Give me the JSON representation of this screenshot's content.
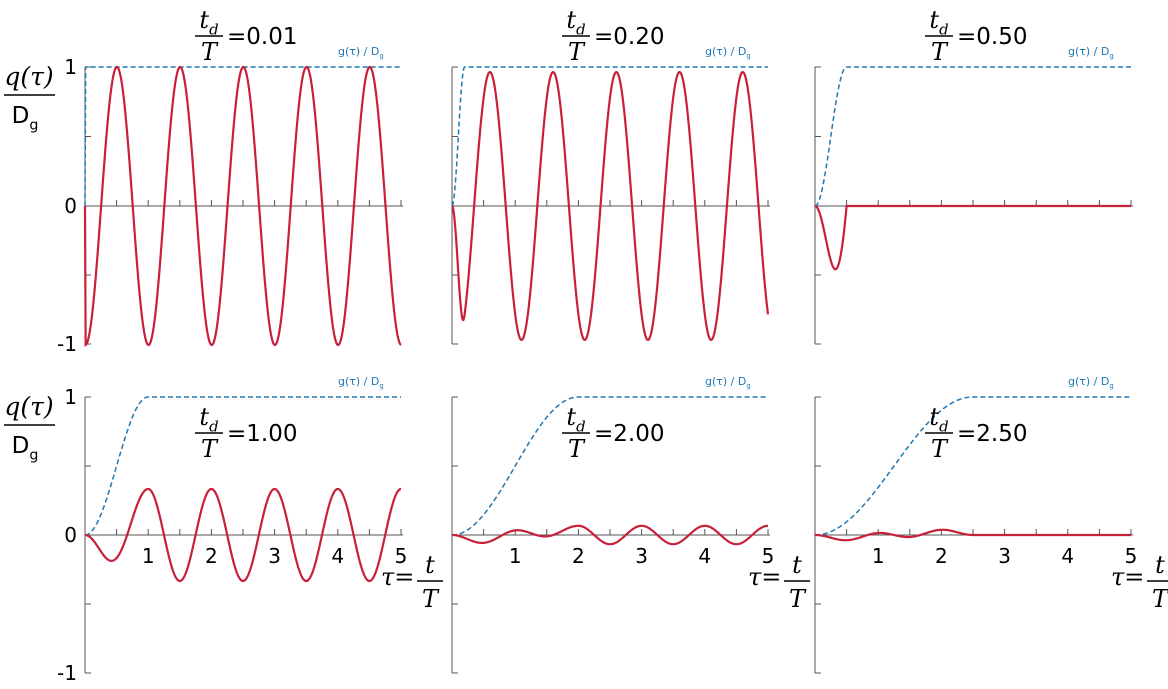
{
  "figure": {
    "ylabel_num": "q(τ)",
    "ylabel_den": "Dg",
    "xlabel_lhs": "τ=",
    "xlabel_num": "t",
    "xlabel_den": "T",
    "ratio_num": "td",
    "ratio_den": "T",
    "legend_label": "g(τ) / Dg",
    "colors": {
      "response": "#c8203a",
      "ground": "#1f77b4",
      "axis": "#555555"
    }
  },
  "chart_data": [
    {
      "type": "line",
      "td_over_T": "=0.01",
      "td": 0.01,
      "x_range": [
        0,
        5
      ],
      "ylim": [
        -1,
        1
      ],
      "yticks": [
        "1",
        "0",
        "-1"
      ],
      "xticks": [],
      "series": [
        {
          "name": "q(τ)/Dg",
          "style": "solid"
        },
        {
          "name": "g(τ) / Dg",
          "style": "dashed"
        }
      ]
    },
    {
      "type": "line",
      "td_over_T": "=0.20",
      "td": 0.2,
      "x_range": [
        0,
        5
      ],
      "ylim": [
        -1,
        1
      ],
      "yticks": [],
      "xticks": [],
      "series": [
        {
          "name": "q(τ)/Dg",
          "style": "solid"
        },
        {
          "name": "g(τ) / Dg",
          "style": "dashed"
        }
      ]
    },
    {
      "type": "line",
      "td_over_T": "=0.50",
      "td": 0.5,
      "x_range": [
        0,
        5
      ],
      "ylim": [
        -1,
        1
      ],
      "yticks": [],
      "xticks": [],
      "series": [
        {
          "name": "q(τ)/Dg",
          "style": "solid"
        },
        {
          "name": "g(τ) / Dg",
          "style": "dashed"
        }
      ]
    },
    {
      "type": "line",
      "td_over_T": "=1.00",
      "td": 1.0,
      "x_range": [
        0,
        5
      ],
      "ylim": [
        -1,
        1
      ],
      "yticks": [
        "1",
        "0",
        "-1"
      ],
      "xticks": [
        "1",
        "2",
        "3",
        "4",
        "5"
      ],
      "series": [
        {
          "name": "q(τ)/Dg",
          "style": "solid"
        },
        {
          "name": "g(τ) / Dg",
          "style": "dashed"
        }
      ]
    },
    {
      "type": "line",
      "td_over_T": "=2.00",
      "td": 2.0,
      "x_range": [
        0,
        5
      ],
      "ylim": [
        -1,
        1
      ],
      "yticks": [],
      "xticks": [
        "1",
        "2",
        "3",
        "4",
        "5"
      ],
      "series": [
        {
          "name": "q(τ)/Dg",
          "style": "solid"
        },
        {
          "name": "g(τ) / Dg",
          "style": "dashed"
        }
      ]
    },
    {
      "type": "line",
      "td_over_T": "=2.50",
      "td": 2.5,
      "x_range": [
        0,
        5
      ],
      "ylim": [
        -1,
        1
      ],
      "yticks": [],
      "xticks": [
        "1",
        "2",
        "3",
        "4",
        "5"
      ],
      "series": [
        {
          "name": "q(τ)/Dg",
          "style": "solid"
        },
        {
          "name": "g(τ) / Dg",
          "style": "dashed"
        }
      ]
    }
  ]
}
